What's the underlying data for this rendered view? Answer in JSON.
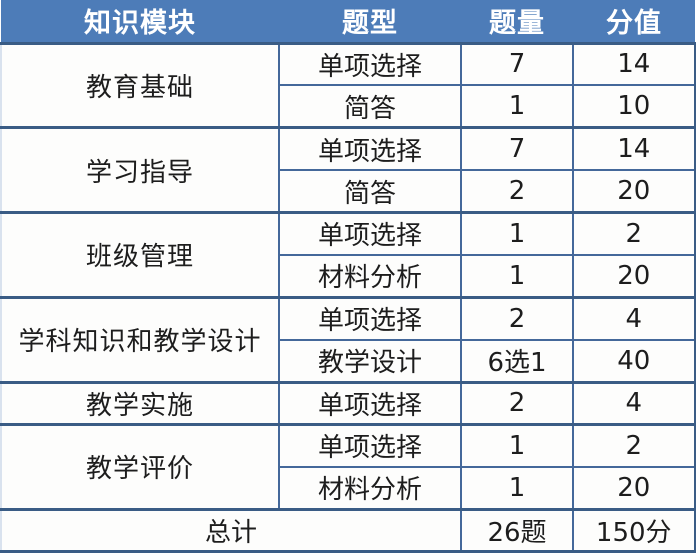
{
  "table": {
    "headers": [
      "知识模块",
      "题型",
      "题量",
      "分值"
    ],
    "groups": [
      {
        "module": "教育基础",
        "rows": [
          {
            "type": "单项选择",
            "count": "7",
            "score": "14"
          },
          {
            "type": "简答",
            "count": "1",
            "score": "10"
          }
        ]
      },
      {
        "module": "学习指导",
        "rows": [
          {
            "type": "单项选择",
            "count": "7",
            "score": "14"
          },
          {
            "type": "简答",
            "count": "2",
            "score": "20"
          }
        ]
      },
      {
        "module": "班级管理",
        "rows": [
          {
            "type": "单项选择",
            "count": "1",
            "score": "2"
          },
          {
            "type": "材料分析",
            "count": "1",
            "score": "20"
          }
        ]
      },
      {
        "module": "学科知识和教学设计",
        "rows": [
          {
            "type": "单项选择",
            "count": "2",
            "score": "4"
          },
          {
            "type": "教学设计",
            "count": "6选1",
            "score": "40"
          }
        ]
      },
      {
        "module": "教学实施",
        "rows": [
          {
            "type": "单项选择",
            "count": "2",
            "score": "4"
          }
        ]
      },
      {
        "module": "教学评价",
        "rows": [
          {
            "type": "单项选择",
            "count": "1",
            "score": "2"
          },
          {
            "type": "材料分析",
            "count": "1",
            "score": "20"
          }
        ]
      }
    ],
    "total": {
      "label": "总计",
      "count": "26题",
      "score": "150分"
    }
  },
  "colors": {
    "header_bg": "#4d7cb8",
    "header_text": "#ffffff",
    "border": "#44689a",
    "border_thick": "#3a5c85",
    "cell_bg": "#fdfdfc",
    "text": "#1d1d1d",
    "page_bg": "#ffffff"
  }
}
